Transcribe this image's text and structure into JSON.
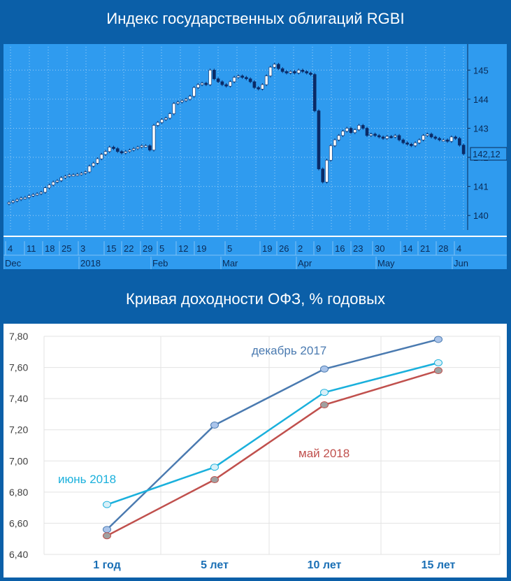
{
  "banners": {
    "top": "Индекс государственных облигаций RGBI",
    "bottom": "Кривая доходности ОФЗ, % годовых"
  },
  "chart_data": [
    {
      "type": "candlestick",
      "title": "Индекс государственных облигаций RGBI",
      "ylim": [
        139.5,
        145.8
      ],
      "y_ticks": [
        140,
        141,
        142,
        143,
        144,
        145
      ],
      "y_tick_labels": [
        "140",
        "141",
        "142",
        "143",
        "144",
        "145"
      ],
      "last_value_label": "142,12",
      "x_day_labels": [
        "4",
        "11",
        "18",
        "25",
        "3",
        "15",
        "22",
        "29",
        "5",
        "12",
        "19",
        "5",
        "19",
        "26",
        "2",
        "9",
        "16",
        "23",
        "30",
        "14",
        "21",
        "28",
        "4"
      ],
      "x_month_labels": [
        "Dec",
        "2018",
        "Feb",
        "Mar",
        "Apr",
        "May",
        "Jun"
      ],
      "closes": [
        140.45,
        140.5,
        140.55,
        140.6,
        140.62,
        140.68,
        140.72,
        140.75,
        140.8,
        140.95,
        141.05,
        141.15,
        141.2,
        141.3,
        141.35,
        141.4,
        141.4,
        141.42,
        141.45,
        141.5,
        141.7,
        141.8,
        141.95,
        142.1,
        142.2,
        142.35,
        142.3,
        142.2,
        142.15,
        142.2,
        142.25,
        142.3,
        142.35,
        142.4,
        142.4,
        142.25,
        143.1,
        143.2,
        143.3,
        143.35,
        143.5,
        143.85,
        143.9,
        143.95,
        144.0,
        144.1,
        144.4,
        144.5,
        144.55,
        144.5,
        145.0,
        144.7,
        144.6,
        144.5,
        144.45,
        144.6,
        144.75,
        144.8,
        144.75,
        144.7,
        144.6,
        144.4,
        144.35,
        144.5,
        144.8,
        145.1,
        145.2,
        145.05,
        144.95,
        144.9,
        144.95,
        144.9,
        145.0,
        144.95,
        144.9,
        144.85,
        143.6,
        141.6,
        141.15,
        141.9,
        142.4,
        142.6,
        142.75,
        142.9,
        143.0,
        142.85,
        142.95,
        143.1,
        143.0,
        142.75,
        142.8,
        142.75,
        142.7,
        142.65,
        142.72,
        142.7,
        142.75,
        142.6,
        142.5,
        142.45,
        142.4,
        142.5,
        142.6,
        142.75,
        142.8,
        142.7,
        142.65,
        142.6,
        142.6,
        142.55,
        142.7,
        142.65,
        142.42,
        142.12
      ]
    },
    {
      "type": "line",
      "title": "Кривая доходности ОФЗ, % годовых",
      "categories": [
        "1 год",
        "5 лет",
        "10 лет",
        "15 лет"
      ],
      "ylim": [
        6.4,
        7.8
      ],
      "y_ticks": [
        6.4,
        6.6,
        6.8,
        7.0,
        7.2,
        7.4,
        7.6,
        7.8
      ],
      "y_tick_labels": [
        "6,40",
        "6,60",
        "6,80",
        "7,00",
        "7,20",
        "7,40",
        "7,60",
        "7,80"
      ],
      "series": [
        {
          "name": "декабрь 2017",
          "values": [
            6.56,
            7.23,
            7.59,
            7.78
          ],
          "color": "#4a7ab0",
          "marker": "#aac4ea"
        },
        {
          "name": "июнь 2018",
          "values": [
            6.72,
            6.96,
            7.44,
            7.63
          ],
          "color": "#1ab0dc",
          "marker": "#d8f0f8"
        },
        {
          "name": "май 2018",
          "values": [
            6.52,
            6.88,
            7.36,
            7.58
          ],
          "color": "#c0504d",
          "marker": "#a0a0a0"
        }
      ]
    }
  ]
}
